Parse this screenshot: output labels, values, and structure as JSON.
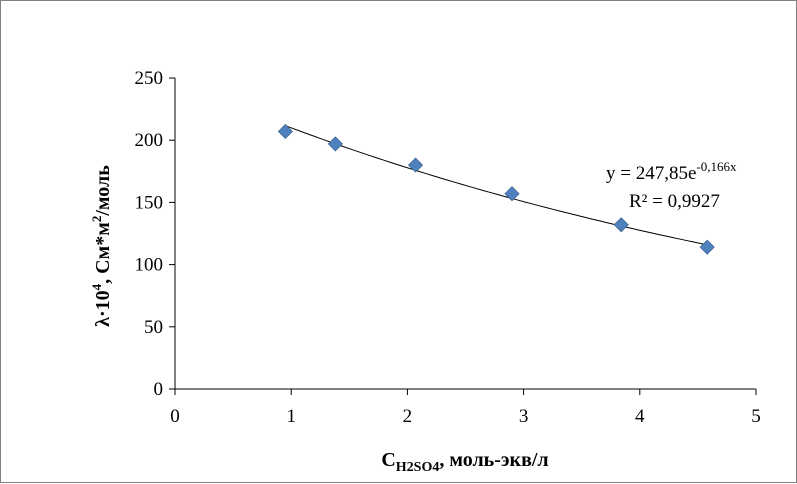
{
  "chart_data": {
    "type": "scatter",
    "xlim": [
      0,
      5
    ],
    "ylim": [
      0,
      250
    ],
    "x_ticks": [
      "0",
      "1",
      "2",
      "3",
      "4",
      "5"
    ],
    "y_ticks": [
      "0",
      "50",
      "100",
      "150",
      "200",
      "250"
    ],
    "xlabel": {
      "main": "C",
      "sub": "H2SO4",
      "rest": ", моль-экв/л"
    },
    "ylabel": {
      "pre": "λ·10",
      "sup": "4",
      "mid": ", См*м",
      "sup2": "2",
      "post": "/моль"
    },
    "series": [
      {
        "x": [
          0.95,
          1.38,
          2.07,
          2.9,
          3.84,
          4.58
        ],
        "y": [
          207,
          197,
          180,
          157,
          132,
          114
        ],
        "marker": "diamond",
        "color": "#4f81bd"
      }
    ],
    "trendline": {
      "type": "exponential",
      "a": 247.85,
      "b": -0.166,
      "color": "#000000",
      "equation": {
        "base": "y = 247,85e",
        "exponent": "-0,166x"
      },
      "r2": "R² = 0,9927"
    },
    "grid": false,
    "legend": "none"
  }
}
